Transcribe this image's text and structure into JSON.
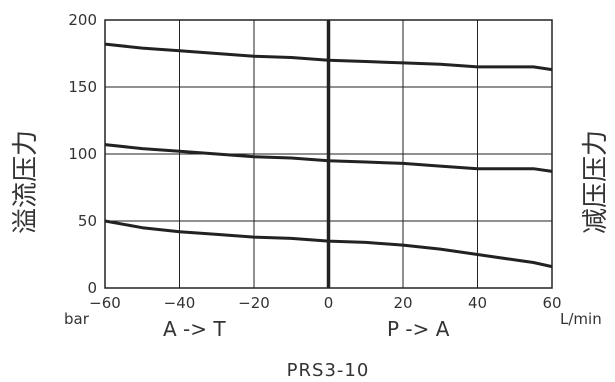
{
  "chart_data": {
    "type": "line",
    "title": "PRS3-10",
    "x_unit": "L/min",
    "y_unit": "bar",
    "y_left_label": "溢流压力",
    "y_right_label": "减压压力",
    "direction_left": "A -> T",
    "direction_right": "P -> A",
    "xlim": [
      -60,
      60
    ],
    "ylim": [
      0,
      200
    ],
    "x_ticks": [
      -60,
      -40,
      -20,
      0,
      20,
      40,
      60
    ],
    "y_ticks": [
      0,
      50,
      100,
      150,
      200
    ],
    "grid": true,
    "series": [
      {
        "x": [
          -60,
          -50,
          -40,
          -30,
          -20,
          -10,
          0,
          10,
          20,
          30,
          40,
          50,
          55,
          60
        ],
        "y": [
          182,
          179,
          177,
          175,
          173,
          172,
          170,
          169,
          168,
          167,
          165,
          165,
          165,
          163
        ]
      },
      {
        "x": [
          -60,
          -50,
          -40,
          -30,
          -20,
          -10,
          0,
          10,
          20,
          30,
          40,
          50,
          55,
          60
        ],
        "y": [
          107,
          104,
          102,
          100,
          98,
          97,
          95,
          94,
          93,
          91,
          89,
          89,
          89,
          87
        ]
      },
      {
        "x": [
          -60,
          -50,
          -40,
          -30,
          -20,
          -10,
          0,
          10,
          20,
          30,
          40,
          50,
          55,
          60
        ],
        "y": [
          50,
          45,
          42,
          40,
          38,
          37,
          35,
          34,
          32,
          29,
          25,
          21,
          19,
          16
        ]
      }
    ],
    "line_color": "#222222",
    "grid_color": "#222222"
  }
}
